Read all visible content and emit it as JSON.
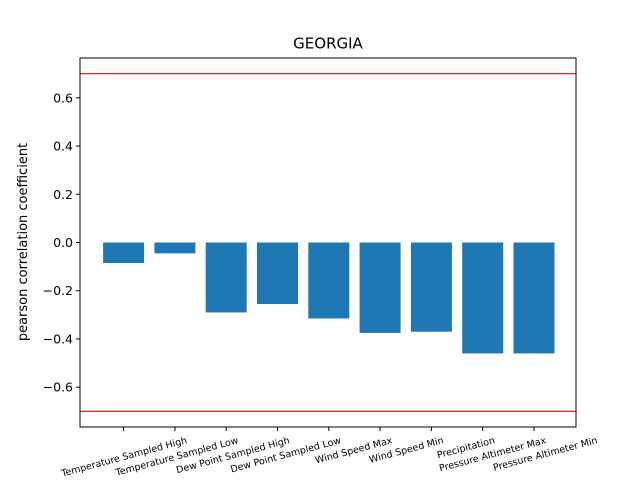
{
  "chart_data": {
    "type": "bar",
    "title": "GEORGIA",
    "xlabel": "",
    "ylabel": "pearson correlation coefficient",
    "categories": [
      "Temperature Sampled High",
      "Temperature Sampled Low",
      "Dew Point Sampled High",
      "Dew Point Sampled Low",
      "Wind Speed Max",
      "Wind Speed Min",
      "Precipitation",
      "Pressure Altimeter Max",
      "Pressure Altimeter Min"
    ],
    "values": [
      -0.085,
      -0.045,
      -0.29,
      -0.255,
      -0.315,
      -0.375,
      -0.37,
      -0.46,
      -0.46
    ],
    "ylim": [
      -0.765,
      0.765
    ],
    "yticks": [
      -0.6,
      -0.4,
      -0.2,
      0.0,
      0.2,
      0.4,
      0.6
    ],
    "ytick_labels": [
      "−0.6",
      "−0.4",
      "−0.2",
      "0.0",
      "0.2",
      "0.4",
      "0.6"
    ],
    "reference_lines": [
      0.7,
      -0.7
    ],
    "bar_color": "#1f77b4",
    "reference_line_color": "#ff0000",
    "grid": false,
    "legend": "none"
  }
}
